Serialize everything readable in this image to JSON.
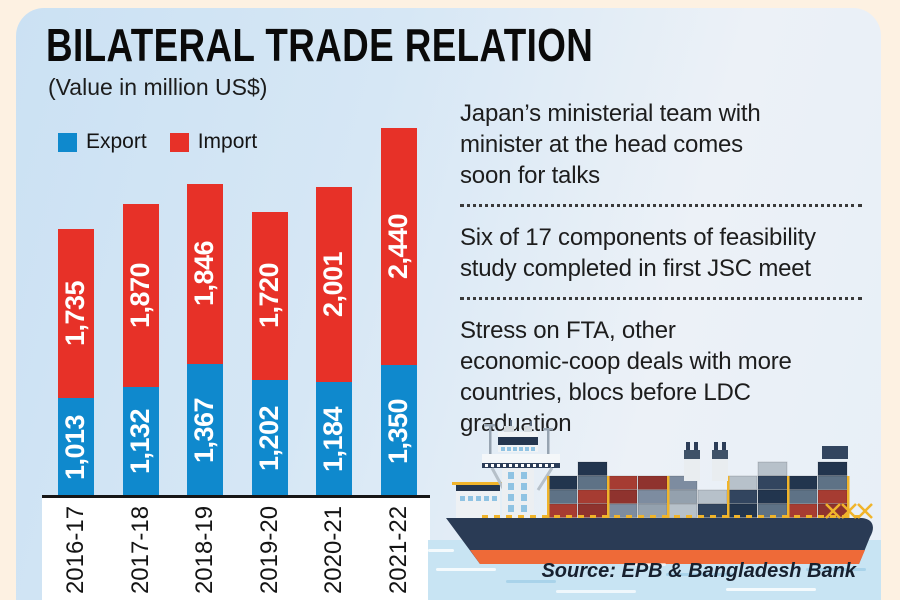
{
  "title": "BILATERAL TRADE RELATION",
  "subtitle": "(Value in million US$)",
  "legend": {
    "export_label": "Export",
    "import_label": "Import"
  },
  "chart_data": {
    "type": "bar",
    "stacked": true,
    "title": "BILATERAL TRADE RELATION",
    "subtitle": "(Value in million US$)",
    "unit": "million US$",
    "categories": [
      "2016-17",
      "2017-18",
      "2018-19",
      "2019-20",
      "2020-21",
      "2021-22"
    ],
    "series": [
      {
        "name": "Export",
        "color": "#0f89cd",
        "values": [
          1013,
          1132,
          1367,
          1202,
          1184,
          1350
        ]
      },
      {
        "name": "Import",
        "color": "#e73128",
        "values": [
          1735,
          1870,
          1846,
          1720,
          2001,
          2440
        ]
      }
    ],
    "value_labels_shown": true,
    "value_format": "thousands-comma",
    "legend_position": "top-left",
    "grid": false
  },
  "notes": [
    {
      "text": "Japan’s ministerial team with\nminister at the head comes\nsoon for talks"
    },
    {
      "text": "Six of 17 components of feasibility\nstudy completed in first JSC meet"
    },
    {
      "text": "Stress on FTA, other\neconomic-coop deals with more\ncountries, blocs before LDC\ngraduation"
    }
  ],
  "source": "Source: EPB & Bangladesh Bank",
  "illustration": {
    "name": "cargo-ship",
    "alt": "Container ship on water"
  },
  "colors": {
    "page_bg": "#fdf1e2",
    "export_blue": "#0f89cd",
    "import_red": "#e73128",
    "axis": "#161616",
    "water": "#c8e4f3",
    "hull_navy": "#2a3b55",
    "hull_orange": "#ee6a38",
    "crane_yellow": "#f0b42b",
    "ship_palette": [
      "#a63c32",
      "#32455f",
      "#7d8ca0",
      "#5e7286",
      "#b7c1ca",
      "#8f332e",
      "#22354e",
      "#94a1ae"
    ]
  }
}
